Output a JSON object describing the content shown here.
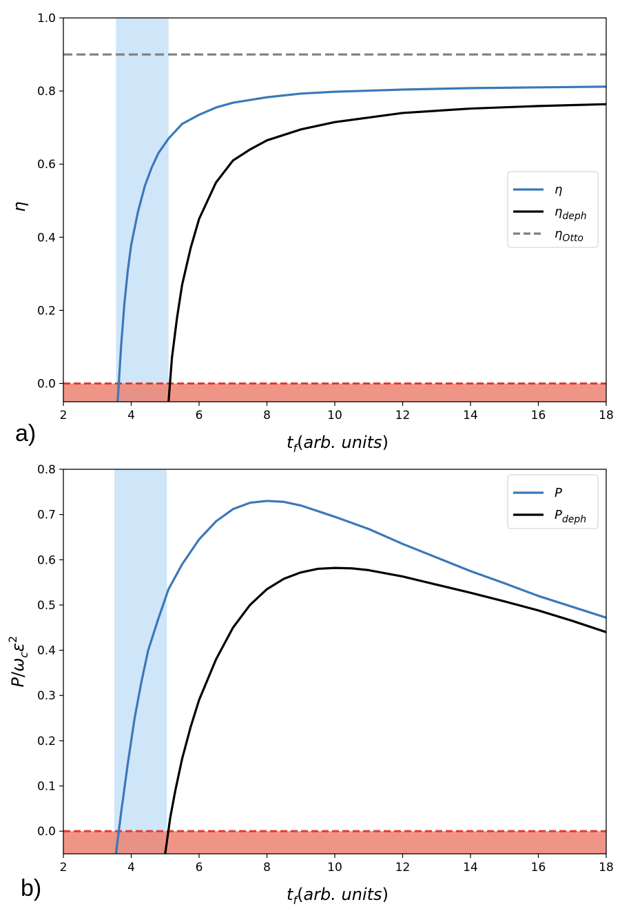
{
  "colors": {
    "eta": "#3a78b8",
    "deph": "#000000",
    "otto": "#7f7f7f",
    "shade": "#cfe6f8",
    "negative_region": "#ec8373",
    "zero_line": "#e2392b"
  },
  "chart_data": [
    {
      "type": "line",
      "panel_label": "a)",
      "xlabel": "t_f(arb. units)",
      "ylabel": "η",
      "xlim": [
        2,
        18
      ],
      "ylim": [
        -0.05,
        1.0
      ],
      "xticks": [
        2,
        4,
        6,
        8,
        10,
        12,
        14,
        16,
        18
      ],
      "xtick_labels": [
        "2",
        "4",
        "6",
        "8",
        "10",
        "12",
        "14",
        "16",
        "18"
      ],
      "yticks": [
        0.0,
        0.2,
        0.4,
        0.6,
        0.8,
        1.0
      ],
      "ytick_labels": [
        "0.0",
        "0.2",
        "0.4",
        "0.6",
        "0.8",
        "1.0"
      ],
      "shaded_x_range": [
        3.55,
        5.1
      ],
      "negative_region": [
        -0.05,
        0.0
      ],
      "legend_position": "center-right",
      "series": [
        {
          "name": "η",
          "key": "eta",
          "style": "solid",
          "x": [
            3.6,
            3.7,
            3.8,
            3.9,
            4.0,
            4.2,
            4.4,
            4.6,
            4.8,
            5.1,
            5.5,
            6.0,
            6.5,
            7.0,
            8.0,
            9.0,
            10.0,
            12.0,
            14.0,
            16.0,
            18.0
          ],
          "y": [
            -0.05,
            0.1,
            0.22,
            0.31,
            0.38,
            0.47,
            0.54,
            0.59,
            0.63,
            0.67,
            0.71,
            0.735,
            0.755,
            0.768,
            0.783,
            0.793,
            0.798,
            0.804,
            0.808,
            0.81,
            0.812
          ]
        },
        {
          "name": "η_deph",
          "key": "deph",
          "style": "solid",
          "x": [
            5.1,
            5.2,
            5.35,
            5.5,
            5.75,
            6.0,
            6.5,
            7.0,
            7.5,
            8.0,
            9.0,
            10.0,
            12.0,
            14.0,
            16.0,
            18.0
          ],
          "y": [
            -0.05,
            0.07,
            0.18,
            0.27,
            0.37,
            0.45,
            0.55,
            0.61,
            0.64,
            0.665,
            0.695,
            0.715,
            0.74,
            0.752,
            0.759,
            0.764
          ]
        },
        {
          "name": "η_Otto",
          "key": "otto",
          "style": "dashed",
          "x": [
            2,
            18
          ],
          "y": [
            0.9,
            0.9
          ]
        }
      ]
    },
    {
      "type": "line",
      "panel_label": "b)",
      "xlabel": "t_f(arb. units)",
      "ylabel": "P/ω_c ε²",
      "xlim": [
        2,
        18
      ],
      "ylim": [
        -0.05,
        0.8
      ],
      "xticks": [
        2,
        4,
        6,
        8,
        10,
        12,
        14,
        16,
        18
      ],
      "xtick_labels": [
        "2",
        "4",
        "6",
        "8",
        "10",
        "12",
        "14",
        "16",
        "18"
      ],
      "yticks": [
        0.0,
        0.1,
        0.2,
        0.3,
        0.4,
        0.5,
        0.6,
        0.7,
        0.8
      ],
      "ytick_labels": [
        "0.0",
        "0.1",
        "0.2",
        "0.3",
        "0.4",
        "0.5",
        "0.6",
        "0.7",
        "0.8"
      ],
      "shaded_x_range": [
        3.5,
        5.05
      ],
      "negative_region": [
        -0.05,
        0.0
      ],
      "legend_position": "top-right",
      "series": [
        {
          "name": "P",
          "key": "eta",
          "style": "solid",
          "x": [
            3.55,
            3.7,
            3.9,
            4.1,
            4.3,
            4.5,
            4.8,
            5.1,
            5.5,
            6.0,
            6.5,
            7.0,
            7.5,
            8.0,
            8.5,
            9.0,
            10.0,
            11.0,
            12.0,
            13.0,
            14.0,
            15.0,
            16.0,
            17.0,
            18.0
          ],
          "y": [
            -0.05,
            0.04,
            0.15,
            0.25,
            0.33,
            0.4,
            0.47,
            0.535,
            0.59,
            0.645,
            0.685,
            0.712,
            0.726,
            0.73,
            0.728,
            0.72,
            0.695,
            0.668,
            0.635,
            0.605,
            0.575,
            0.548,
            0.52,
            0.496,
            0.472
          ]
        },
        {
          "name": "P_deph",
          "key": "deph",
          "style": "solid",
          "x": [
            5.0,
            5.15,
            5.3,
            5.5,
            5.75,
            6.0,
            6.5,
            7.0,
            7.5,
            8.0,
            8.5,
            9.0,
            9.5,
            10.0,
            10.5,
            11.0,
            12.0,
            13.0,
            14.0,
            15.0,
            16.0,
            17.0,
            18.0
          ],
          "y": [
            -0.05,
            0.03,
            0.09,
            0.16,
            0.23,
            0.29,
            0.38,
            0.45,
            0.5,
            0.535,
            0.558,
            0.572,
            0.58,
            0.582,
            0.581,
            0.577,
            0.563,
            0.545,
            0.527,
            0.508,
            0.488,
            0.465,
            0.44
          ]
        }
      ]
    }
  ]
}
